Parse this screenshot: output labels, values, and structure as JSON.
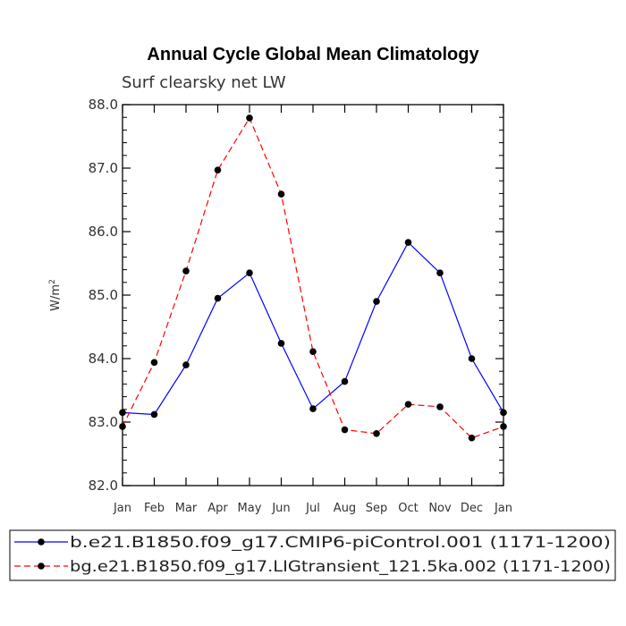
{
  "chart_data": {
    "type": "line",
    "title": "Annual Cycle Global Mean Climatology",
    "subtitle": "Surf clearsky net LW",
    "ylabel": "W/m",
    "ylabel_sup": "2",
    "ylim": [
      82.0,
      88.0
    ],
    "yticks": [
      "82.0",
      "83.0",
      "84.0",
      "85.0",
      "86.0",
      "87.0",
      "88.0"
    ],
    "categories": [
      "Jan",
      "Feb",
      "Mar",
      "Apr",
      "May",
      "Jun",
      "Jul",
      "Aug",
      "Sep",
      "Oct",
      "Nov",
      "Dec",
      "Jan"
    ],
    "grid": false,
    "legend_position": "bottom",
    "series": [
      {
        "name": "b.e21.B1850.f09_g17.CMIP6-piControl.001 (1171-1200)",
        "color": "#0000ff",
        "dash": "solid",
        "values": [
          83.15,
          83.12,
          83.9,
          84.95,
          85.35,
          84.24,
          83.21,
          83.64,
          84.9,
          85.83,
          85.35,
          84.0,
          83.15
        ]
      },
      {
        "name": "bg.e21.B1850.f09_g17.LIGtransient_121.5ka.002 (1171-1200)",
        "color": "#ff0000",
        "dash": "dashed",
        "values": [
          82.93,
          83.94,
          85.38,
          86.97,
          87.79,
          86.59,
          84.11,
          82.88,
          82.82,
          83.28,
          83.24,
          82.75,
          82.93
        ]
      }
    ]
  }
}
